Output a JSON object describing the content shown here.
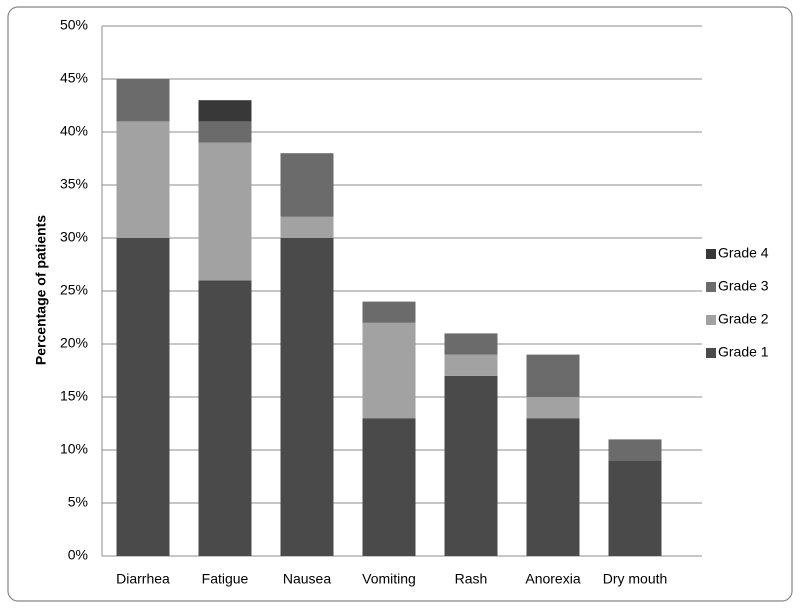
{
  "chart_data": {
    "type": "stacked_bar",
    "y_label": "Percentage of patients",
    "categories": [
      "Diarrhea",
      "Fatigue",
      "Nausea",
      "Vomiting",
      "Rash",
      "Anorexia",
      "Dry mouth"
    ],
    "series": [
      {
        "name": "Grade 1",
        "color": "#4a4a4a",
        "values": [
          30,
          26,
          30,
          13,
          17,
          13,
          9
        ]
      },
      {
        "name": "Grade 2",
        "color": "#a2a2a2",
        "values": [
          11,
          13,
          2,
          9,
          2,
          2,
          0
        ]
      },
      {
        "name": "Grade 3",
        "color": "#6b6b6b",
        "values": [
          4,
          2,
          6,
          2,
          2,
          4,
          2
        ]
      },
      {
        "name": "Grade 4",
        "color": "#383838",
        "values": [
          0,
          2,
          0,
          0,
          0,
          0,
          0
        ]
      }
    ],
    "ylim": [
      0,
      50
    ],
    "yticks": [
      {
        "value": 0,
        "label": "0%"
      },
      {
        "value": 5,
        "label": "5%"
      },
      {
        "value": 10,
        "label": "10%"
      },
      {
        "value": 15,
        "label": "15%"
      },
      {
        "value": 20,
        "label": "20%"
      },
      {
        "value": 25,
        "label": "25%"
      },
      {
        "value": 30,
        "label": "30%"
      },
      {
        "value": 35,
        "label": "35%"
      },
      {
        "value": 40,
        "label": "40%"
      },
      {
        "value": 45,
        "label": "45%"
      },
      {
        "value": 50,
        "label": "50%"
      }
    ],
    "grid": true,
    "legend": "right"
  }
}
